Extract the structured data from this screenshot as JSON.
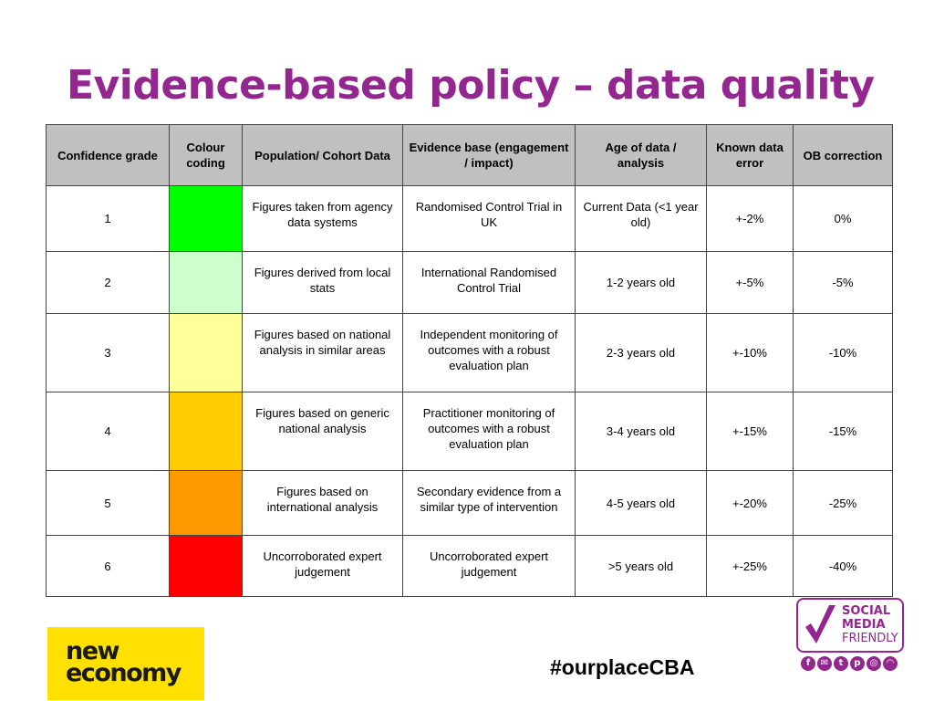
{
  "title": "Evidence-based policy – data quality",
  "table": {
    "headers": [
      "Confidence grade",
      "Colour coding",
      "Population/ Cohort Data",
      "Evidence base (engagement / impact)",
      "Age of data / analysis",
      "Known data error",
      "OB correction"
    ],
    "rows": [
      {
        "grade": "1",
        "color": "#00ff00",
        "population": "Figures taken from agency data systems",
        "evidence": "Randomised Control Trial in UK",
        "age": "Current Data (<1 year old)",
        "error": "+-2%",
        "correction": "0%"
      },
      {
        "grade": "2",
        "color": "#ccffcc",
        "population": "Figures derived from local stats",
        "evidence": "International Randomised Control Trial",
        "age": "1-2  years old",
        "error": "+-5%",
        "correction": "-5%"
      },
      {
        "grade": "3",
        "color": "#ffff99",
        "population": "Figures based on national analysis in similar areas",
        "evidence": "Independent monitoring of outcomes with a robust evaluation plan",
        "age": "2-3 years old",
        "error": "+-10%",
        "correction": "-10%"
      },
      {
        "grade": "4",
        "color": "#ffcc00",
        "population": "Figures based on generic national analysis",
        "evidence": "Practitioner monitoring of outcomes with a robust evaluation plan",
        "age": "3-4 years old",
        "error": "+-15%",
        "correction": "-15%"
      },
      {
        "grade": "5",
        "color": "#ff9900",
        "population": "Figures based on international analysis",
        "evidence": "Secondary evidence from a similar type of intervention",
        "age": "4-5 years old",
        "error": "+-20%",
        "correction": "-25%"
      },
      {
        "grade": "6",
        "color": "#ff0000",
        "population": "Uncorroborated expert judgement",
        "evidence": "Uncorroborated expert judgement",
        "age": ">5 years old",
        "error": "+-25%",
        "correction": "-40%"
      }
    ]
  },
  "footer": {
    "logo_line1": "new",
    "logo_line2": "economy",
    "hashtag": "#ourplaceCBA",
    "badge_line1": "SOCIAL",
    "badge_line2": "MEDIA",
    "badge_line3": "FRIENDLY",
    "badge_icons": [
      "facebook-icon",
      "email-icon",
      "twitter-icon",
      "pinterest-icon",
      "instagram-icon",
      "rss-icon"
    ]
  }
}
